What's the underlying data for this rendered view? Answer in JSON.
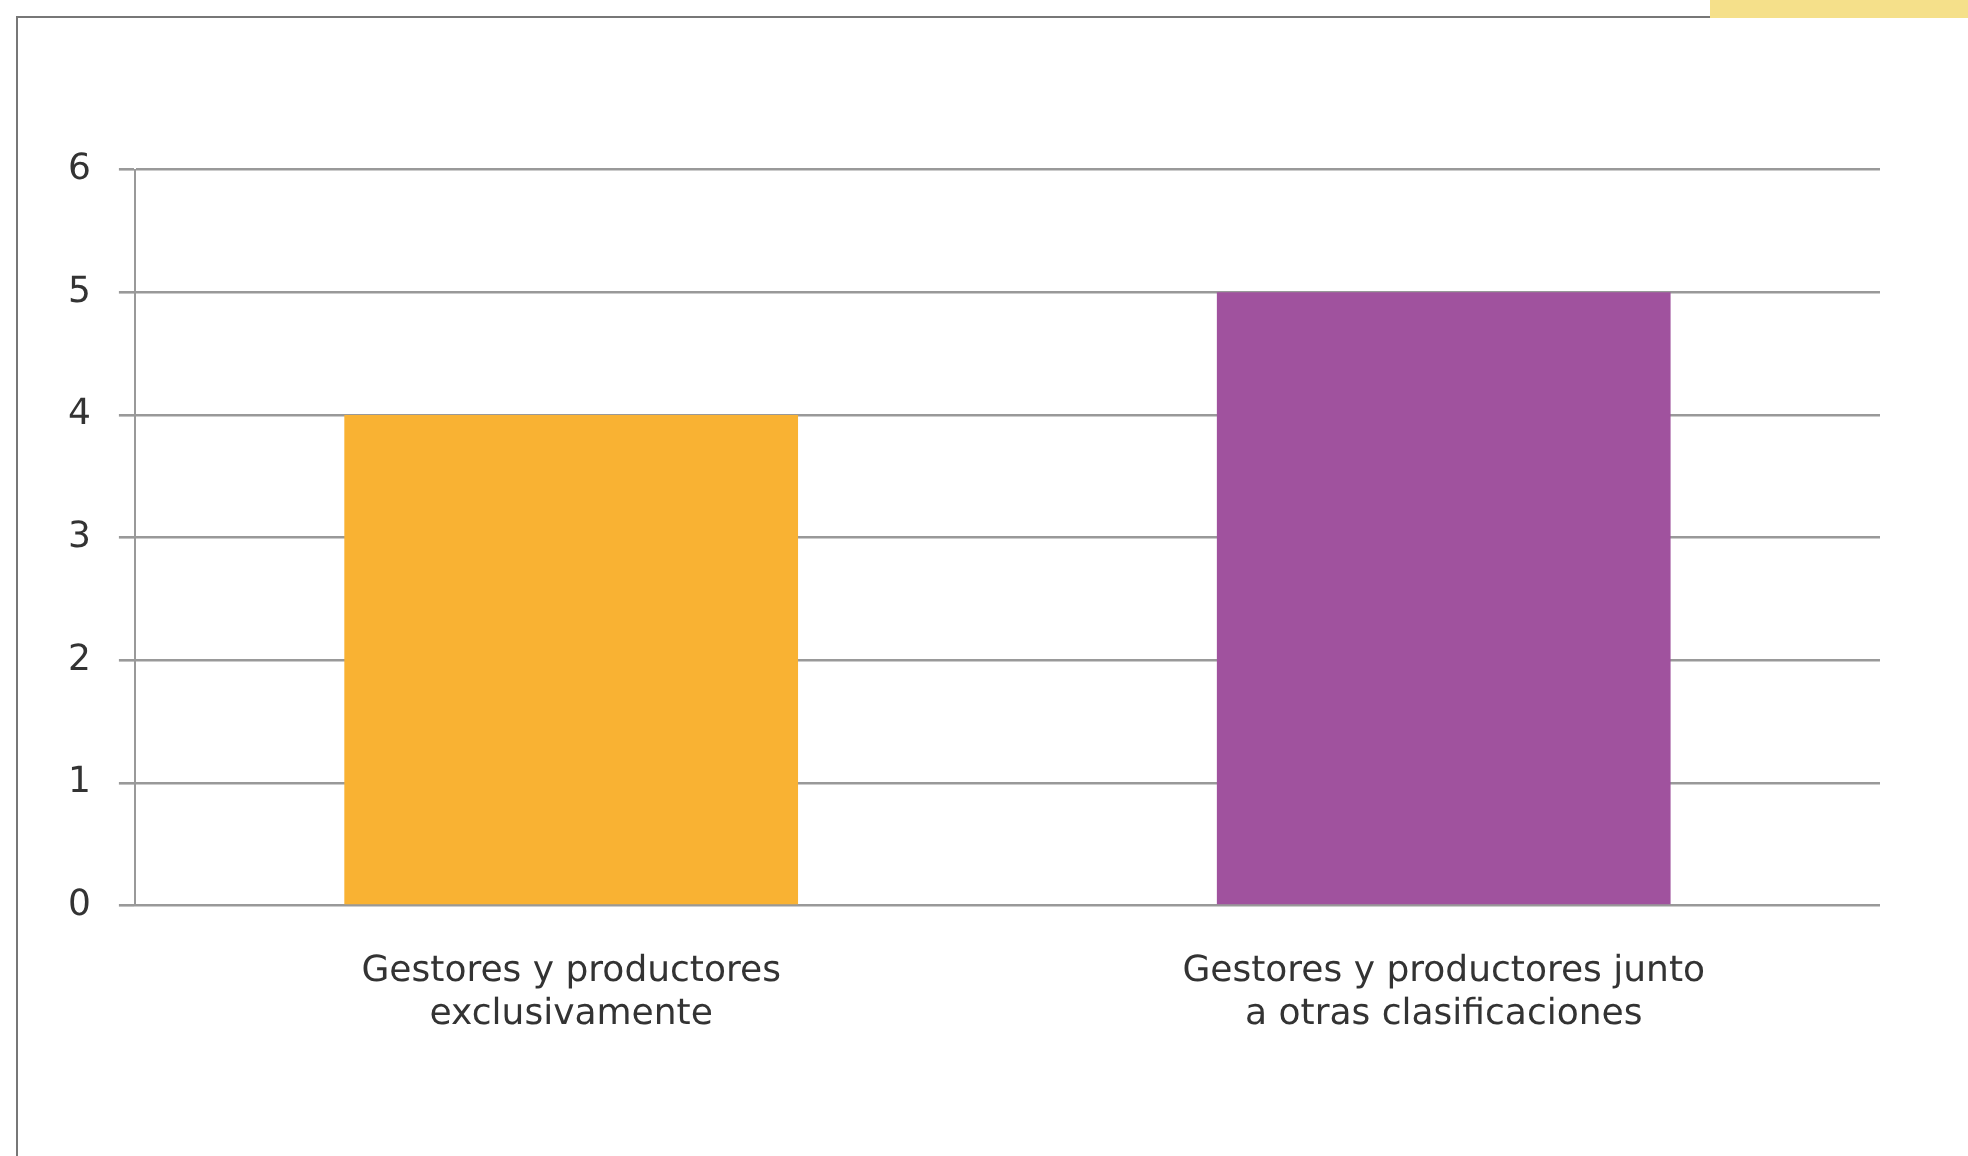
{
  "chart_data": {
    "type": "bar",
    "categories": [
      "Gestores y productores\nexclusivamente",
      "Gestores y productores junto\na otras clasificaciones"
    ],
    "values": [
      4,
      5
    ],
    "colors": [
      "#f9b233",
      "#a0529e"
    ],
    "ylim": [
      0,
      6
    ],
    "yticks": [
      0,
      1,
      2,
      3,
      4,
      5,
      6
    ],
    "grid": "y",
    "legend": false
  }
}
